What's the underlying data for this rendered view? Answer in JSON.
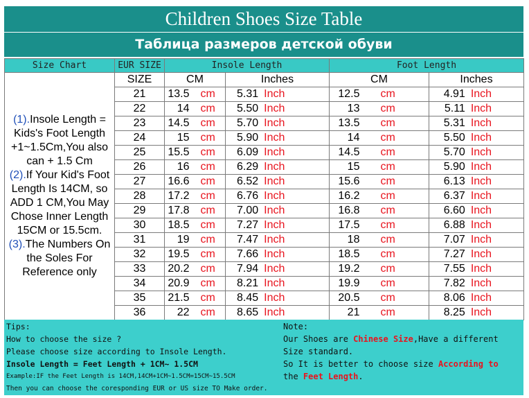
{
  "title_en": "Children Shoes Size Table",
  "title_ru": "Таблица размеров детской обуви",
  "headers": {
    "size_chart": "Size Chart",
    "eur_size": "EUR SIZE",
    "insole_length": "Insole Length",
    "foot_length": "Foot Length",
    "size": "SIZE",
    "cm": "CM",
    "inches": "Inches"
  },
  "unit_cm": "cm",
  "unit_inch": "Inch",
  "rows": [
    {
      "size": "21",
      "insole_cm": "13.5",
      "insole_in": "5.31",
      "foot_cm": "12.5",
      "foot_in": "4.91"
    },
    {
      "size": "22",
      "insole_cm": "14",
      "insole_in": "5.50",
      "foot_cm": "13",
      "foot_in": "5.11"
    },
    {
      "size": "23",
      "insole_cm": "14.5",
      "insole_in": "5.70",
      "foot_cm": "13.5",
      "foot_in": "5.31"
    },
    {
      "size": "24",
      "insole_cm": "15",
      "insole_in": "5.90",
      "foot_cm": "14",
      "foot_in": "5.50"
    },
    {
      "size": "25",
      "insole_cm": "15.5",
      "insole_in": "6.09",
      "foot_cm": "14.5",
      "foot_in": "5.70"
    },
    {
      "size": "26",
      "insole_cm": "16",
      "insole_in": "6.29",
      "foot_cm": "15",
      "foot_in": "5.90"
    },
    {
      "size": "27",
      "insole_cm": "16.6",
      "insole_in": "6.52",
      "foot_cm": "15.6",
      "foot_in": "6.13"
    },
    {
      "size": "28",
      "insole_cm": "17.2",
      "insole_in": "6.76",
      "foot_cm": "16.2",
      "foot_in": "6.37"
    },
    {
      "size": "29",
      "insole_cm": "17.8",
      "insole_in": "7.00",
      "foot_cm": "16.8",
      "foot_in": "6.60"
    },
    {
      "size": "30",
      "insole_cm": "18.5",
      "insole_in": "7.27",
      "foot_cm": "17.5",
      "foot_in": "6.88"
    },
    {
      "size": "31",
      "insole_cm": "19",
      "insole_in": "7.47",
      "foot_cm": "18",
      "foot_in": "7.07"
    },
    {
      "size": "32",
      "insole_cm": "19.5",
      "insole_in": "7.66",
      "foot_cm": "18.5",
      "foot_in": "7.27"
    },
    {
      "size": "33",
      "insole_cm": "20.2",
      "insole_in": "7.94",
      "foot_cm": "19.2",
      "foot_in": "7.55"
    },
    {
      "size": "34",
      "insole_cm": "20.9",
      "insole_in": "8.21",
      "foot_cm": "19.9",
      "foot_in": "7.82"
    },
    {
      "size": "35",
      "insole_cm": "21.5",
      "insole_in": "8.45",
      "foot_cm": "20.5",
      "foot_in": "8.06"
    },
    {
      "size": "36",
      "insole_cm": "22",
      "insole_in": "8.65",
      "foot_cm": "21",
      "foot_in": "8.25"
    }
  ],
  "side_note": {
    "n1": "(1).",
    "t1": "Insole Length = Kids's Foot Length +1~1.5Cm,You also can + 1.5 Cm",
    "n2": "(2).",
    "t2": "If Your Kid's Foot Length Is 14CM, so ADD 1 CM,You May Chose Inner Length 15CM or 15.5cm.",
    "n3": "(3).",
    "t3": "The Numbers On the Soles For Reference only"
  },
  "tips": {
    "label": "Tips:",
    "line1": "How to choose the size ?",
    "line2": "Please choose size according to Insole Length.",
    "formula": "Insole Length = Feet Length + 1CM~ 1.5CM",
    "example": "Example:IF the Feet Length is 14CM,14CM+1CM~1.5CM=15CM~15.5CM",
    "line5": "Then you can choose the coresponding EUR or US size TO Make order."
  },
  "note": {
    "label": "Note:",
    "a": "Our Shoes are ",
    "b": "Chinese Size",
    "c": ",Have a different",
    "d": "Size standard.",
    "e": "So It is better to choose size ",
    "f": "According to",
    "g": "the ",
    "h": "Feet Length",
    "i": "."
  },
  "colors": {
    "title_bg": "#1a8f8b",
    "header_bg": "#39c9c5",
    "tips_bg": "#3dcfcc",
    "unit_red": "#e8141e",
    "note_blue": "#1f4fb8"
  }
}
